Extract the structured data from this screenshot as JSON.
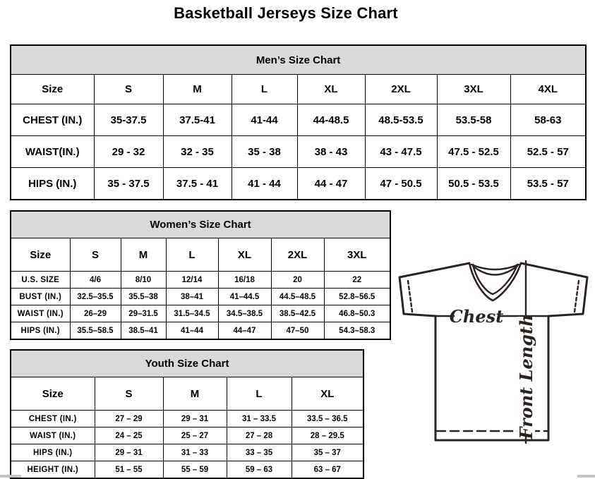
{
  "page_title": "Basketball Jerseys Size Chart",
  "colors": {
    "table_header_bg": "#d9d9d9",
    "table_border": "#000000",
    "diagram_stroke": "#2b2320"
  },
  "tables": {
    "mens": {
      "title": "Men’s Size Chart",
      "columns": [
        "Size",
        "S",
        "M",
        "L",
        "XL",
        "2XL",
        "3XL",
        "4XL"
      ],
      "rows": [
        {
          "label": "CHEST (IN.)",
          "values": [
            "35-37.5",
            "37.5-41",
            "41-44",
            "44-48.5",
            "48.5-53.5",
            "53.5-58",
            "58-63"
          ]
        },
        {
          "label": "WAIST(IN.)",
          "values": [
            "29 - 32",
            "32 - 35",
            "35 - 38",
            "38 - 43",
            "43 - 47.5",
            "47.5 - 52.5",
            "52.5 - 57"
          ]
        },
        {
          "label": "HIPS (IN.)",
          "values": [
            "35 - 37.5",
            "37.5 - 41",
            "41 - 44",
            "44 - 47",
            "47 - 50.5",
            "50.5 - 53.5",
            "53.5 - 57"
          ]
        }
      ]
    },
    "womens": {
      "title": "Women’s Size Chart",
      "columns": [
        "Size",
        "S",
        "M",
        "L",
        "XL",
        "2XL",
        "3XL"
      ],
      "rows": [
        {
          "label": "U.S. SIZE",
          "values": [
            "4/6",
            "8/10",
            "12/14",
            "16/18",
            "20",
            "22"
          ]
        },
        {
          "label": "BUST (IN.)",
          "values": [
            "32.5–35.5",
            "35.5–38",
            "38–41",
            "41–44.5",
            "44.5–48.5",
            "52.8–56.5"
          ]
        },
        {
          "label": "WAIST (IN.)",
          "values": [
            "26–29",
            "29–31.5",
            "31.5–34.5",
            "34.5–38.5",
            "38.5–42.5",
            "46.8–50.3"
          ]
        },
        {
          "label": "HIPS (IN.)",
          "values": [
            "35.5–58.5",
            "38.5–41",
            "41–44",
            "44–47",
            "47–50",
            "54.3–58.3"
          ]
        }
      ]
    },
    "youth": {
      "title": "Youth Size Chart",
      "columns": [
        "Size",
        "S",
        "M",
        "L",
        "XL"
      ],
      "rows": [
        {
          "label": "CHEST (IN.)",
          "values": [
            "27 – 29",
            "29 – 31",
            "31 – 33.5",
            "33.5 – 36.5"
          ]
        },
        {
          "label": "WAIST (IN.)",
          "values": [
            "24 – 25",
            "25 – 27",
            "27 – 28",
            "28 – 29.5"
          ]
        },
        {
          "label": "HIPS (IN.)",
          "values": [
            "29 – 31",
            "31 – 33",
            "33 – 35",
            "35 – 37"
          ]
        },
        {
          "label": "HEIGHT (IN.)",
          "values": [
            "51 – 55",
            "55 – 59",
            "59 – 63",
            "63 – 67"
          ]
        }
      ]
    }
  },
  "diagram": {
    "chest_label": "Chest",
    "front_length_label": "Front Length"
  }
}
